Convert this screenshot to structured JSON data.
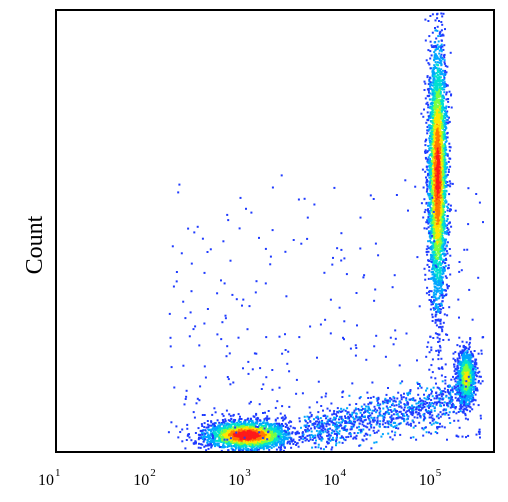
{
  "chart_data": {
    "type": "scatter",
    "title": "",
    "xlabel": "",
    "ylabel": "Count",
    "x_scale": "log",
    "xlim": [
      10,
      400000
    ],
    "ylim": [
      0,
      100
    ],
    "grid": false,
    "legend": "none",
    "x_ticks": [
      {
        "value": 10,
        "base": "10",
        "exp": "1"
      },
      {
        "value": 100,
        "base": "10",
        "exp": "2"
      },
      {
        "value": 1000,
        "base": "10",
        "exp": "3"
      },
      {
        "value": 10000,
        "base": "10",
        "exp": "4"
      },
      {
        "value": 100000,
        "base": "10",
        "exp": "5"
      }
    ],
    "colormap": [
      "#1f3bff",
      "#00a6ff",
      "#00e0d0",
      "#7cff3f",
      "#ffe600",
      "#ff7a00",
      "#ff1a1a"
    ],
    "populations": [
      {
        "name": "cluster-low",
        "center_x": 1000,
        "center_y": 4,
        "spread_log_x": 0.22,
        "spread_y": 1.6,
        "count": 2400,
        "peak_intensity": 1
      },
      {
        "name": "cluster-high",
        "center_x": 100000,
        "center_y": 63,
        "spread_log_x": 0.05,
        "spread_y": 15,
        "count": 3200,
        "peak_intensity": 0.9
      },
      {
        "name": "cluster-right-bottom",
        "center_x": 200000,
        "center_y": 17,
        "spread_log_x": 0.05,
        "spread_y": 3.2,
        "count": 900,
        "peak_intensity": 0.6
      },
      {
        "name": "bridge",
        "from_x": 4000,
        "to_x": 180000,
        "from_y": 5,
        "to_y": 12,
        "count": 900,
        "peak_intensity": 0.2
      },
      {
        "name": "scatter-noise",
        "count": 350,
        "peak_intensity": 0.1
      }
    ]
  }
}
